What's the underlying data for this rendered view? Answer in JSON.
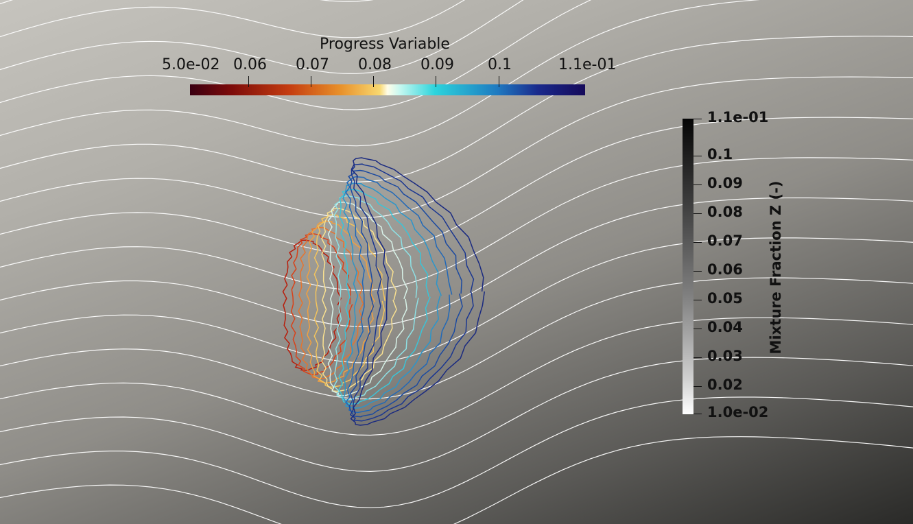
{
  "progress_legend": {
    "title": "Progress Variable",
    "labels": [
      "5.0e-02",
      "0.06",
      "0.07",
      "0.08",
      "0.09",
      "0.1",
      "1.1e-01"
    ]
  },
  "mixture_legend": {
    "title": "Mixture Fraction Z (-)",
    "labels": [
      "1.1e-01",
      "0.1",
      "0.09",
      "0.08",
      "0.07",
      "0.06",
      "0.05",
      "0.04",
      "0.03",
      "0.02",
      "1.0e-02"
    ]
  },
  "colors": {
    "background_top": "#c6c4be",
    "background_bottom": "#2a2a28",
    "streamlines": "#ffffff"
  }
}
